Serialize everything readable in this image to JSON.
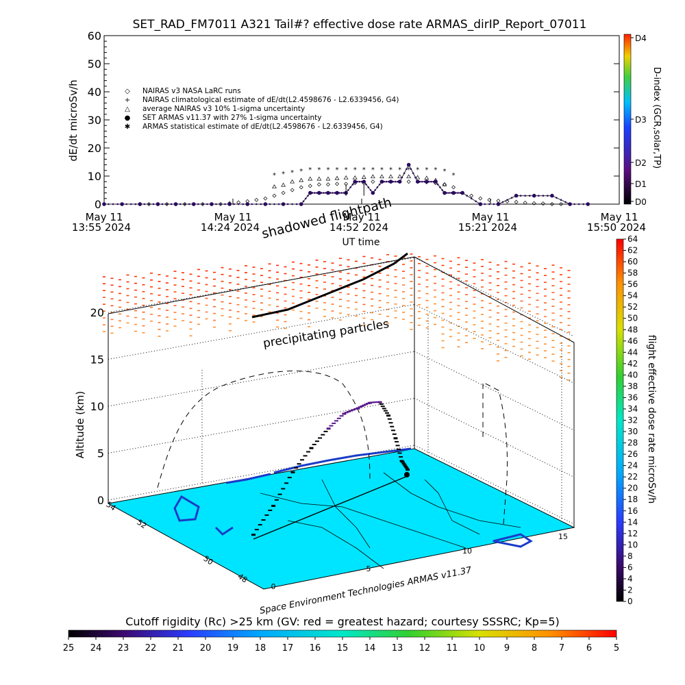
{
  "title": "SET_RAD_FM7011  A321 Tail#? effective dose rate ARMAS_dirIP_Report_07011",
  "colors": {
    "nairas": "#000000",
    "armas": "#2a0a5e",
    "map_fill": "#00e5ff",
    "coast": "#1a3cc8",
    "track": "#000000"
  },
  "chart_data": [
    {
      "type": "scatter",
      "title": "SET_RAD_FM7011  A321 Tail#? effective dose rate ARMAS_dirIP_Report_07011",
      "xlabel": "UT time",
      "ylabel": "dE/dt microSv/h",
      "ylim": [
        0,
        60
      ],
      "yticks": [
        0,
        10,
        20,
        30,
        40,
        50,
        60
      ],
      "xticks": [
        {
          "line1": "May 11",
          "line2": "13:55 2024"
        },
        {
          "line1": "May 11",
          "line2": "14:24 2024"
        },
        {
          "line1": "May 11",
          "line2": "14:52 2024"
        },
        {
          "line1": "May 11",
          "line2": "15:21 2024"
        },
        {
          "line1": "May 11",
          "line2": "15:50 2024"
        }
      ],
      "x_range_minutes": [
        0,
        115
      ],
      "grid": false,
      "legend_position": "upper-left",
      "legend": [
        {
          "symbol": "◇",
          "label": "NAIRAS v3 NASA LaRC runs"
        },
        {
          "symbol": "+",
          "label": "NAIRAS climatological estimate of dE/dt(L2.4598676 - L2.6339456, G4)"
        },
        {
          "symbol": "△",
          "label": "average NAIRAS v3 10% 1-sigma uncertainty"
        },
        {
          "symbol": "●",
          "label": "SET ARMAS v11.37 with 27% 1-sigma uncertainty"
        },
        {
          "symbol": "✱",
          "label": "ARMAS statistical estimate of dE/dt(L2.4598676 - L2.6339456, G4)"
        }
      ],
      "right_axis": {
        "label": "D-index (GCR,solar,TP)",
        "ticks": [
          "D0",
          "D1",
          "D2",
          "D3",
          "D4"
        ]
      },
      "annotations": [
        "shadowed flightpath"
      ],
      "series": [
        {
          "name": "NAIRAS v3 NASA LaRC runs",
          "x": [
            8,
            10,
            12,
            14,
            16,
            18,
            20,
            22,
            24,
            26,
            28,
            30,
            32,
            34,
            36,
            38,
            40,
            42,
            44,
            46,
            48,
            50,
            52,
            54,
            56,
            58,
            60,
            62,
            64,
            66,
            68,
            70,
            72,
            74,
            76,
            78,
            80,
            82,
            84,
            86,
            88,
            90,
            92,
            94,
            96,
            98,
            100,
            102
          ],
          "values": [
            0,
            0,
            0,
            0,
            0,
            0,
            0,
            0,
            0,
            0,
            0.3,
            0.6,
            1,
            1.5,
            2,
            3,
            4,
            5,
            6,
            6.5,
            7,
            7,
            7.2,
            7.2,
            7.5,
            7.5,
            8,
            8,
            8,
            8,
            8,
            8,
            7.8,
            7.5,
            7,
            6,
            4,
            3,
            2,
            1.5,
            1.2,
            1,
            0.8,
            0.5,
            0.3,
            0.2,
            0,
            0
          ]
        },
        {
          "name": "average NAIRAS v3 10% 1-sigma uncertainty",
          "x": [
            38,
            40,
            42,
            44,
            46,
            48,
            50,
            52,
            54,
            56,
            58,
            60,
            62,
            64,
            66,
            68,
            70,
            72,
            74,
            76
          ],
          "values": [
            6.2,
            6.8,
            8,
            8.5,
            9,
            9,
            9,
            9.2,
            9.4,
            9.4,
            9.6,
            9.8,
            9.8,
            9.8,
            9.8,
            9.8,
            9.5,
            9.3,
            8.5,
            7
          ]
        },
        {
          "name": "ARMAS statistical estimate of dE/dt(L2.4598676 - L2.6339456, G4)",
          "x": [
            38,
            40,
            42,
            44,
            46,
            48,
            50,
            52,
            54,
            56,
            58,
            60,
            62,
            64,
            66,
            68,
            70,
            72,
            74,
            76,
            78
          ],
          "values": [
            10.5,
            11,
            11.5,
            12,
            12.5,
            12.5,
            12.5,
            12.5,
            12.5,
            12.5,
            12.5,
            12.5,
            12.5,
            12.5,
            12.5,
            12.5,
            12.5,
            12.5,
            12.5,
            12,
            10.5
          ]
        },
        {
          "name": "SET ARMAS v11.37 with 27% 1-sigma uncertainty",
          "x": [
            0,
            4,
            8,
            12,
            16,
            20,
            24,
            28,
            32,
            36,
            40,
            44,
            46,
            48,
            50,
            52,
            54,
            56,
            58,
            60,
            62,
            64,
            66,
            68,
            70,
            72,
            74,
            76,
            78,
            80,
            84,
            88,
            92,
            96,
            100,
            104,
            108
          ],
          "values": [
            0,
            0,
            0,
            0,
            0,
            0,
            0,
            0,
            0,
            0,
            0,
            0,
            4,
            4,
            4,
            4,
            4,
            8,
            8,
            4,
            8,
            8,
            8,
            14,
            8,
            8,
            8,
            4,
            4,
            4,
            0,
            0,
            3,
            3,
            3,
            0,
            0
          ]
        }
      ]
    },
    {
      "type": "scatter",
      "zlabel": "Altitude (km)",
      "zticks": [
        0,
        5,
        10,
        15,
        20
      ],
      "x_axis_ticks": [
        0,
        5,
        10,
        15
      ],
      "y_axis_ticks": [
        "48",
        "50",
        "52",
        "54"
      ],
      "annotations": [
        "precipitating particles"
      ],
      "credit": "Space Environment Technologies ARMAS v11.37",
      "colorbar_right": {
        "label": "flight effective dose rate microSv/h",
        "min": 0,
        "max": 64,
        "ticks": [
          0,
          2,
          4,
          6,
          8,
          10,
          12,
          14,
          16,
          18,
          20,
          22,
          24,
          26,
          28,
          30,
          32,
          34,
          36,
          38,
          40,
          42,
          44,
          46,
          48,
          50,
          52,
          54,
          56,
          58,
          60,
          62,
          64
        ]
      },
      "flight_altitude_km": [
        0.5,
        3,
        6,
        8,
        9.5,
        10.5,
        10.5,
        10.5,
        10,
        8,
        5,
        2,
        0.5
      ],
      "colorbar_bottom": {
        "label": "Cutoff rigidity (Rc) >25 km (GV: red = greatest hazard; courtesy SSSRC; Kp=5)",
        "ticks": [
          25,
          24,
          23,
          22,
          21,
          20,
          19,
          18,
          17,
          16,
          15,
          14,
          13,
          12,
          11,
          10,
          9,
          8,
          7,
          6,
          5
        ]
      }
    }
  ]
}
